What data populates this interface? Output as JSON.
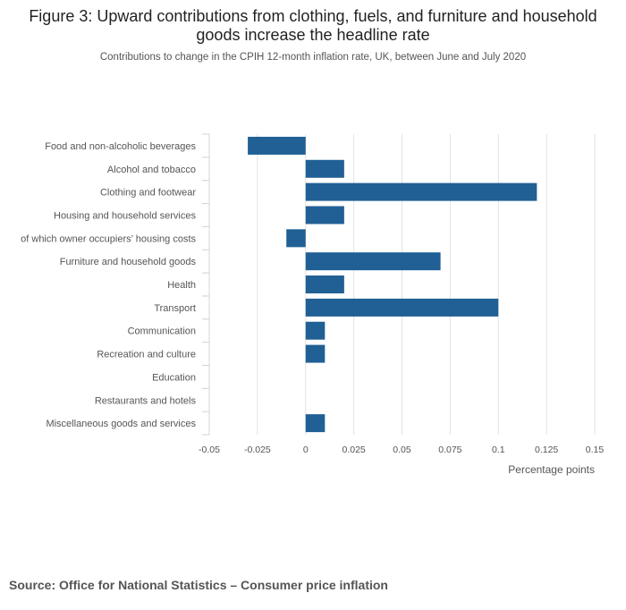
{
  "title": "Figure 3: Upward contributions from clothing, fuels, and furniture and household goods increase the headline rate",
  "subtitle": "Contributions to change in the CPIH 12-month inflation rate, UK, between June and July 2020",
  "source": "Source: Office for National Statistics – Consumer price inflation",
  "colors": {
    "bar": "#206095",
    "grid": "#e2e2e2",
    "axis_text": "#555555"
  },
  "chart_data": {
    "type": "bar",
    "orientation": "horizontal",
    "categories": [
      "Food and non-alcoholic beverages",
      "Alcohol and tobacco",
      "Clothing and footwear",
      "Housing and household services",
      "of which owner occupiers’ housing costs",
      "Furniture and household goods",
      "Health",
      "Transport",
      "Communication",
      "Recreation and culture",
      "Education",
      "Restaurants and hotels",
      "Miscellaneous goods and services"
    ],
    "values": [
      -0.03,
      0.02,
      0.12,
      0.02,
      -0.01,
      0.07,
      0.02,
      0.1,
      0.01,
      0.01,
      0,
      0,
      0.01
    ],
    "xlim": [
      -0.05,
      0.15
    ],
    "ticks": [
      "-0.05",
      "-0.025",
      "0",
      "0.025",
      "0.05",
      "0.075",
      "0.1",
      "0.125",
      "0.15"
    ],
    "tick_values": [
      -0.05,
      -0.025,
      0,
      0.025,
      0.05,
      0.075,
      0.1,
      0.125,
      0.15
    ],
    "xlabel": "Percentage points",
    "ylabel": ""
  }
}
